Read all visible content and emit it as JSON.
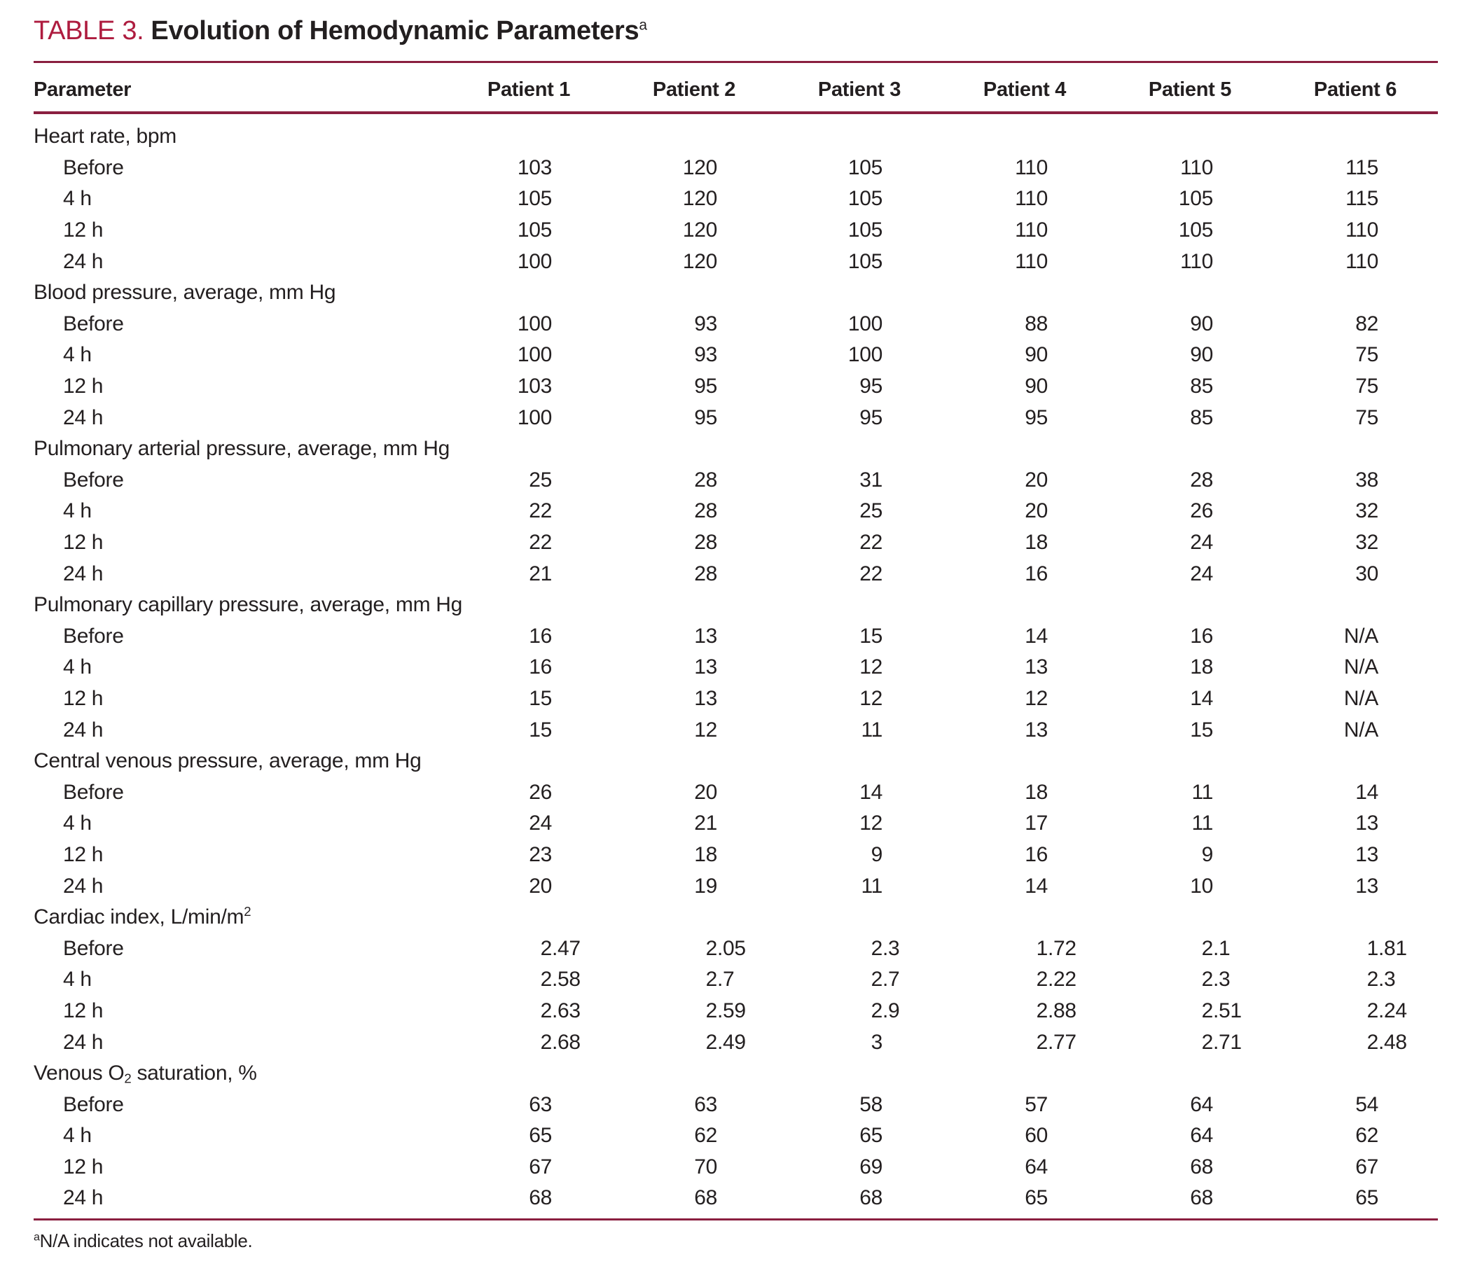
{
  "title": {
    "label": "TABLE 3.",
    "text": "Evolution of Hemodynamic Parameters",
    "footnote_marker": "a"
  },
  "colors": {
    "accent": "#ae1c3f",
    "rule": "#8a1f40",
    "text": "#231f20"
  },
  "table": {
    "columns": [
      "Parameter",
      "Patient 1",
      "Patient 2",
      "Patient 3",
      "Patient 4",
      "Patient 5",
      "Patient 6"
    ],
    "sections": [
      {
        "label_parts": [
          {
            "t": "Heart rate, bpm"
          }
        ],
        "rows": [
          {
            "label": "Before",
            "values": [
              "103",
              "120",
              "105",
              "110",
              "110",
              "115"
            ]
          },
          {
            "label": "4 h",
            "values": [
              "105",
              "120",
              "105",
              "110",
              "105",
              "115"
            ]
          },
          {
            "label": "12 h",
            "values": [
              "105",
              "120",
              "105",
              "110",
              "105",
              "110"
            ]
          },
          {
            "label": "24 h",
            "values": [
              "100",
              "120",
              "105",
              "110",
              "110",
              "110"
            ]
          }
        ]
      },
      {
        "label_parts": [
          {
            "t": "Blood pressure, average, mm Hg"
          }
        ],
        "rows": [
          {
            "label": "Before",
            "values": [
              "100",
              "93",
              "100",
              "88",
              "90",
              "82"
            ]
          },
          {
            "label": "4 h",
            "values": [
              "100",
              "93",
              "100",
              "90",
              "90",
              "75"
            ]
          },
          {
            "label": "12 h",
            "values": [
              "103",
              "95",
              "95",
              "90",
              "85",
              "75"
            ]
          },
          {
            "label": "24 h",
            "values": [
              "100",
              "95",
              "95",
              "95",
              "85",
              "75"
            ]
          }
        ]
      },
      {
        "label_parts": [
          {
            "t": "Pulmonary arterial pressure, average, mm Hg"
          }
        ],
        "rows": [
          {
            "label": "Before",
            "values": [
              "25",
              "28",
              "31",
              "20",
              "28",
              "38"
            ]
          },
          {
            "label": "4 h",
            "values": [
              "22",
              "28",
              "25",
              "20",
              "26",
              "32"
            ]
          },
          {
            "label": "12 h",
            "values": [
              "22",
              "28",
              "22",
              "18",
              "24",
              "32"
            ]
          },
          {
            "label": "24 h",
            "values": [
              "21",
              "28",
              "22",
              "16",
              "24",
              "30"
            ]
          }
        ]
      },
      {
        "label_parts": [
          {
            "t": "Pulmonary capillary pressure, average, mm Hg"
          }
        ],
        "rows": [
          {
            "label": "Before",
            "values": [
              "16",
              "13",
              "15",
              "14",
              "16",
              "N/A"
            ]
          },
          {
            "label": "4 h",
            "values": [
              "16",
              "13",
              "12",
              "13",
              "18",
              "N/A"
            ]
          },
          {
            "label": "12 h",
            "values": [
              "15",
              "13",
              "12",
              "12",
              "14",
              "N/A"
            ]
          },
          {
            "label": "24 h",
            "values": [
              "15",
              "12",
              "11",
              "13",
              "15",
              "N/A"
            ]
          }
        ]
      },
      {
        "label_parts": [
          {
            "t": "Central venous pressure, average, mm Hg"
          }
        ],
        "rows": [
          {
            "label": "Before",
            "values": [
              "26",
              "20",
              "14",
              "18",
              "11",
              "14"
            ]
          },
          {
            "label": "4 h",
            "values": [
              "24",
              "21",
              "12",
              "17",
              "11",
              "13"
            ]
          },
          {
            "label": "12 h",
            "values": [
              "23",
              "18",
              "9",
              "16",
              "9",
              "13"
            ]
          },
          {
            "label": "24 h",
            "values": [
              "20",
              "19",
              "11",
              "14",
              "10",
              "13"
            ]
          }
        ]
      },
      {
        "label_parts": [
          {
            "t": "Cardiac index, L/min/m"
          },
          {
            "t": "2",
            "style": "sup"
          }
        ],
        "rows": [
          {
            "label": "Before",
            "values": [
              "2.47",
              "2.05",
              "2.3",
              "1.72",
              "2.1",
              "1.81"
            ]
          },
          {
            "label": "4 h",
            "values": [
              "2.58",
              "2.7",
              "2.7",
              "2.22",
              "2.3",
              "2.3"
            ]
          },
          {
            "label": "12 h",
            "values": [
              "2.63",
              "2.59",
              "2.9",
              "2.88",
              "2.51",
              "2.24"
            ]
          },
          {
            "label": "24 h",
            "values": [
              "2.68",
              "2.49",
              "3",
              "2.77",
              "2.71",
              "2.48"
            ]
          }
        ]
      },
      {
        "label_parts": [
          {
            "t": "Venous O"
          },
          {
            "t": "2",
            "style": "sub"
          },
          {
            "t": " saturation, %"
          }
        ],
        "rows": [
          {
            "label": "Before",
            "values": [
              "63",
              "63",
              "58",
              "57",
              "64",
              "54"
            ]
          },
          {
            "label": "4 h",
            "values": [
              "65",
              "62",
              "65",
              "60",
              "64",
              "62"
            ]
          },
          {
            "label": "12 h",
            "values": [
              "67",
              "70",
              "69",
              "64",
              "68",
              "67"
            ]
          },
          {
            "label": "24 h",
            "values": [
              "68",
              "68",
              "68",
              "65",
              "68",
              "65"
            ]
          }
        ]
      }
    ]
  },
  "footnote": {
    "marker": "a",
    "text": "N/A indicates not available."
  }
}
